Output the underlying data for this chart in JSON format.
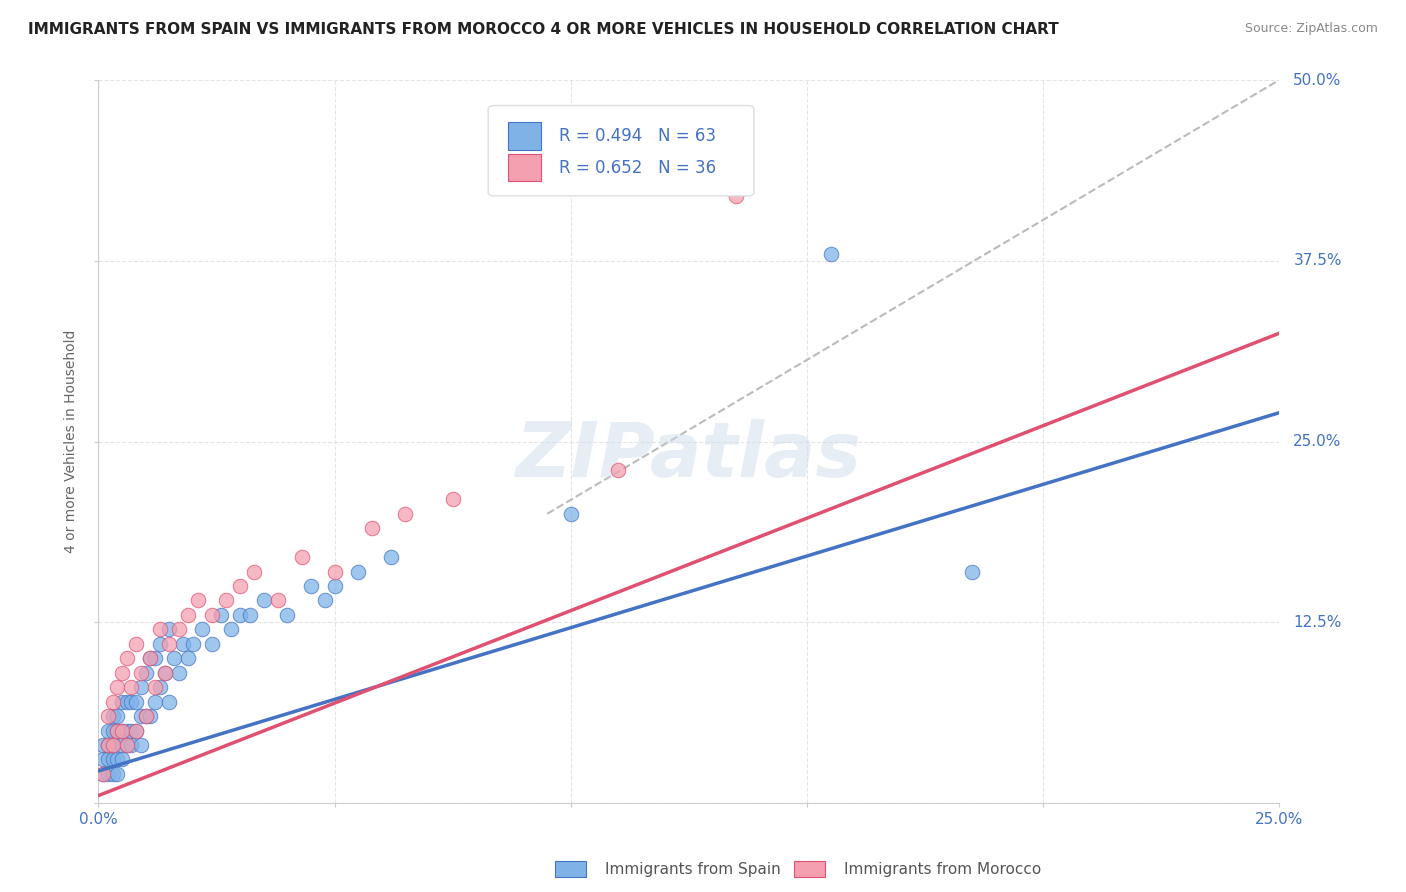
{
  "title": "IMMIGRANTS FROM SPAIN VS IMMIGRANTS FROM MOROCCO 4 OR MORE VEHICLES IN HOUSEHOLD CORRELATION CHART",
  "source": "Source: ZipAtlas.com",
  "ylabel_label": "4 or more Vehicles in Household",
  "legend_label1": "Immigrants from Spain",
  "legend_label2": "Immigrants from Morocco",
  "R1": "0.494",
  "N1": "63",
  "R2": "0.652",
  "N2": "36",
  "color_spain": "#7FB3E8",
  "color_morocco": "#F4A0B0",
  "color_spain_line": "#4472C4",
  "color_morocco_line": "#E05070",
  "color_dashed": "#BBBBBB",
  "color_title": "#222222",
  "color_RN": "#4472C4",
  "xlim": [
    0,
    0.25
  ],
  "ylim": [
    0,
    0.5
  ],
  "xticks": [
    0.0,
    0.05,
    0.1,
    0.15,
    0.2,
    0.25
  ],
  "yticks": [
    0.0,
    0.125,
    0.25,
    0.375,
    0.5
  ],
  "spain_x": [
    0.001,
    0.001,
    0.001,
    0.002,
    0.002,
    0.002,
    0.002,
    0.003,
    0.003,
    0.003,
    0.003,
    0.003,
    0.004,
    0.004,
    0.004,
    0.004,
    0.005,
    0.005,
    0.005,
    0.005,
    0.006,
    0.006,
    0.006,
    0.007,
    0.007,
    0.007,
    0.008,
    0.008,
    0.009,
    0.009,
    0.009,
    0.01,
    0.01,
    0.011,
    0.011,
    0.012,
    0.012,
    0.013,
    0.013,
    0.014,
    0.015,
    0.015,
    0.016,
    0.017,
    0.018,
    0.019,
    0.02,
    0.022,
    0.024,
    0.026,
    0.028,
    0.03,
    0.032,
    0.035,
    0.04,
    0.045,
    0.048,
    0.05,
    0.055,
    0.062,
    0.1,
    0.155,
    0.185
  ],
  "spain_y": [
    0.02,
    0.03,
    0.04,
    0.02,
    0.03,
    0.04,
    0.05,
    0.02,
    0.03,
    0.04,
    0.05,
    0.06,
    0.02,
    0.03,
    0.05,
    0.06,
    0.03,
    0.04,
    0.05,
    0.07,
    0.04,
    0.05,
    0.07,
    0.04,
    0.05,
    0.07,
    0.05,
    0.07,
    0.04,
    0.06,
    0.08,
    0.06,
    0.09,
    0.06,
    0.1,
    0.07,
    0.1,
    0.08,
    0.11,
    0.09,
    0.07,
    0.12,
    0.1,
    0.09,
    0.11,
    0.1,
    0.11,
    0.12,
    0.11,
    0.13,
    0.12,
    0.13,
    0.13,
    0.14,
    0.13,
    0.15,
    0.14,
    0.15,
    0.16,
    0.17,
    0.2,
    0.38,
    0.16
  ],
  "morocco_x": [
    0.001,
    0.002,
    0.002,
    0.003,
    0.003,
    0.004,
    0.004,
    0.005,
    0.005,
    0.006,
    0.006,
    0.007,
    0.008,
    0.008,
    0.009,
    0.01,
    0.011,
    0.012,
    0.013,
    0.014,
    0.015,
    0.017,
    0.019,
    0.021,
    0.024,
    0.027,
    0.03,
    0.033,
    0.038,
    0.043,
    0.05,
    0.058,
    0.065,
    0.075,
    0.11,
    0.135
  ],
  "morocco_y": [
    0.02,
    0.04,
    0.06,
    0.04,
    0.07,
    0.05,
    0.08,
    0.05,
    0.09,
    0.04,
    0.1,
    0.08,
    0.05,
    0.11,
    0.09,
    0.06,
    0.1,
    0.08,
    0.12,
    0.09,
    0.11,
    0.12,
    0.13,
    0.14,
    0.13,
    0.14,
    0.15,
    0.16,
    0.14,
    0.17,
    0.16,
    0.19,
    0.2,
    0.21,
    0.23,
    0.42
  ],
  "spain_line_x0": 0.0,
  "spain_line_y0": 0.022,
  "spain_line_x1": 0.25,
  "spain_line_y1": 0.27,
  "morocco_line_x0": 0.0,
  "morocco_line_y0": 0.005,
  "morocco_line_x1": 0.25,
  "morocco_line_y1": 0.325,
  "dashed_line_x0": 0.095,
  "dashed_line_y0": 0.2,
  "dashed_line_x1": 0.255,
  "dashed_line_y1": 0.51,
  "watermark": "ZIPatlas",
  "background_color": "#FFFFFF",
  "grid_color": "#E5E5E5"
}
